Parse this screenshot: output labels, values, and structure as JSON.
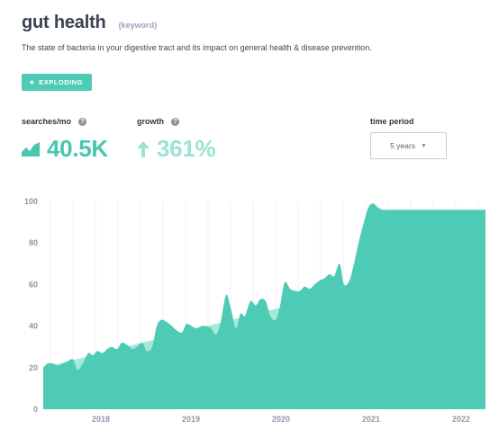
{
  "header": {
    "title": "gut health",
    "type_tag": "(keyword)",
    "description": "The state of bacteria in your digestive tract and its impact on general health & disease prevention.",
    "badge": "EXPLODING"
  },
  "stats": {
    "searches_label": "searches/mo",
    "searches_value": "40.5K",
    "growth_label": "growth",
    "growth_value": "361%",
    "period_label": "time period",
    "period_value": "5 years"
  },
  "colors": {
    "area": "#4ecbb5",
    "trend": "#a8e8db",
    "accent": "#47c8ae",
    "growth": "#9be4d3"
  },
  "icons": {
    "badge": "star-icon",
    "searches": "area-chart-icon",
    "growth": "arrow-up-icon",
    "help": "question-mark-icon",
    "dropdown": "chevron-down-icon"
  },
  "chart_data": {
    "type": "area",
    "x_ticks": [
      "2018",
      "2019",
      "2020",
      "2021",
      "2022"
    ],
    "y_ticks": [
      0,
      20,
      40,
      60,
      80,
      100
    ],
    "ylim": [
      0,
      100
    ],
    "xlim": [
      2017.42,
      2022.33
    ],
    "grid": true,
    "trend_line": {
      "x": [
        2017.42,
        2021.97
      ],
      "y": [
        20,
        70
      ]
    },
    "x": [
      2017.42,
      2017.47,
      2017.53,
      2017.58,
      2017.64,
      2017.69,
      2017.75,
      2017.8,
      2017.86,
      2017.92,
      2017.97,
      2018.02,
      2018.08,
      2018.13,
      2018.18,
      2018.24,
      2018.29,
      2018.35,
      2018.41,
      2018.46,
      2018.52,
      2018.57,
      2018.63,
      2018.68,
      2018.73,
      2018.79,
      2018.85,
      2018.9,
      2018.96,
      2019.01,
      2019.07,
      2019.12,
      2019.18,
      2019.23,
      2019.28,
      2019.34,
      2019.39,
      2019.45,
      2019.5,
      2019.56,
      2019.61,
      2019.66,
      2019.72,
      2019.78,
      2019.83,
      2019.89,
      2019.94,
      2020.0,
      2020.05,
      2020.1,
      2020.16,
      2020.21,
      2020.27,
      2020.32,
      2020.38,
      2020.43,
      2020.49,
      2020.54,
      2020.6,
      2020.65,
      2020.71,
      2020.76,
      2020.82,
      2020.87,
      2020.92,
      2020.98,
      2021.03,
      2021.08,
      2021.14,
      2021.19,
      2021.25,
      2021.3,
      2021.36,
      2021.41,
      2021.47,
      2021.52,
      2021.58,
      2021.63,
      2021.68,
      2021.74,
      2021.79,
      2021.85,
      2021.9,
      2021.96,
      2022.01,
      2022.07,
      2022.12,
      2022.18,
      2022.23,
      2022.29,
      2022.33
    ],
    "values": [
      20,
      22,
      22,
      21,
      22,
      23,
      24,
      19,
      22,
      27,
      26,
      28,
      27,
      29,
      30,
      29,
      32,
      31,
      29,
      30,
      32,
      28,
      30,
      40,
      43,
      42,
      40,
      38,
      37,
      41,
      40,
      39,
      40,
      40,
      39,
      36,
      42,
      55,
      49,
      39,
      46,
      45,
      52,
      50,
      53,
      52,
      45,
      43,
      50,
      61,
      58,
      57,
      57,
      59,
      58,
      60,
      62,
      63,
      65,
      64,
      70,
      60,
      62,
      70,
      80,
      90,
      97,
      99,
      97,
      96,
      96,
      96,
      96,
      96,
      96,
      96,
      96,
      96,
      96,
      96,
      96,
      96,
      96,
      96,
      96,
      96,
      96,
      96,
      96,
      96,
      96
    ]
  }
}
